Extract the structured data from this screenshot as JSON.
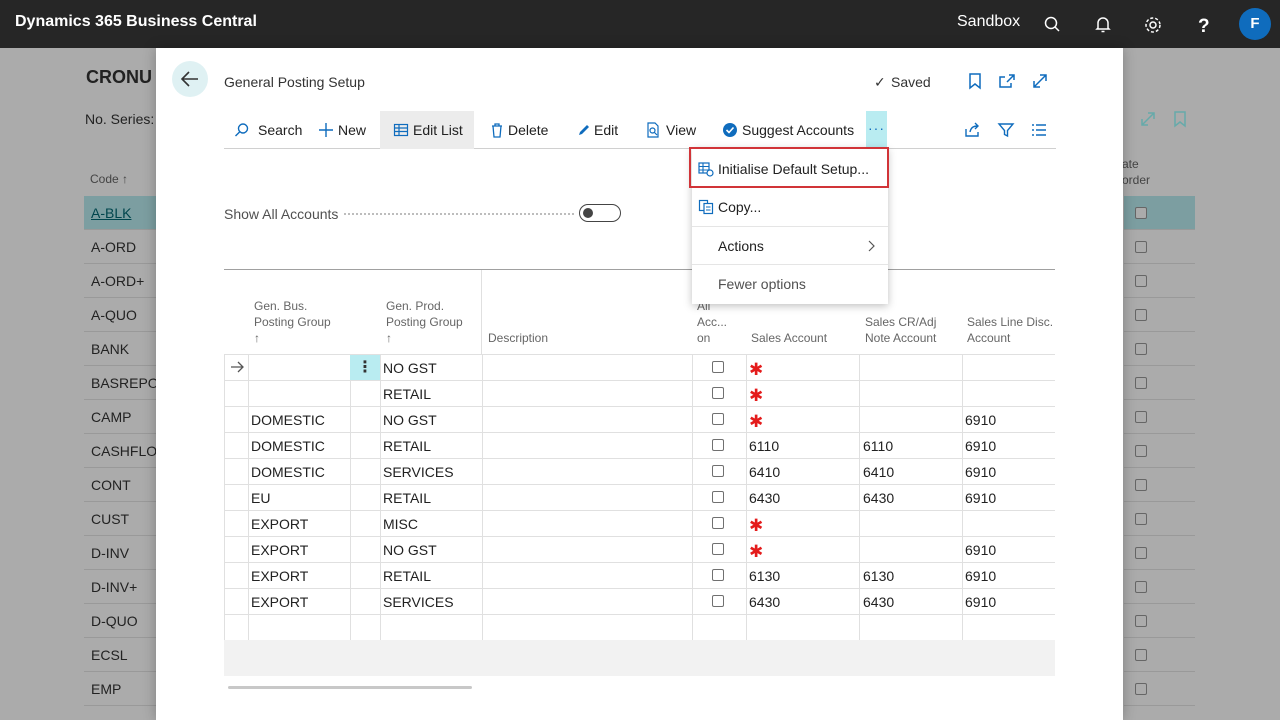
{
  "app": {
    "title": "Dynamics 365 Business Central",
    "environment": "Sandbox",
    "avatar_initial": "F"
  },
  "background_page": {
    "title": "CRONU",
    "series_label": "No. Series:",
    "code_header": "Code ↑",
    "right_header": "ate\norder",
    "codes": [
      "A-BLK",
      "A-ORD",
      "A-ORD+",
      "A-QUO",
      "BANK",
      "BASREPOR",
      "CAMP",
      "CASHFLOW",
      "CONT",
      "CUST",
      "D-INV",
      "D-INV+",
      "D-QUO",
      "ECSL",
      "EMP"
    ]
  },
  "dialog": {
    "title": "General Posting Setup",
    "saved_label": "Saved",
    "toggle_label": "Show All Accounts",
    "actions": {
      "search": "Search",
      "new": "New",
      "edit_list": "Edit List",
      "delete": "Delete",
      "edit": "Edit",
      "view": "View",
      "suggest": "Suggest Accounts",
      "more": "···"
    },
    "columns": {
      "gen_bus": "Gen. Bus.\nPosting Group\n↑",
      "gen_prod": "Gen. Prod.\nPosting Group\n↑",
      "description": "Description",
      "all_acc": "All\nAcc...\non",
      "sales_account": "Sales Account",
      "sales_cr": "Sales CR/Adj\nNote Account",
      "sales_line": "Sales Line Disc.\nAccount"
    },
    "rows": [
      {
        "bus": "",
        "prod": "NO GST",
        "sales": "",
        "sales_req": true,
        "cr": "",
        "line": ""
      },
      {
        "bus": "",
        "prod": "RETAIL",
        "sales": "",
        "sales_req": true,
        "cr": "",
        "line": ""
      },
      {
        "bus": "DOMESTIC",
        "prod": "NO GST",
        "sales": "",
        "sales_req": true,
        "cr": "",
        "line": "6910"
      },
      {
        "bus": "DOMESTIC",
        "prod": "RETAIL",
        "sales": "6110",
        "sales_req": false,
        "cr": "6110",
        "line": "6910"
      },
      {
        "bus": "DOMESTIC",
        "prod": "SERVICES",
        "sales": "6410",
        "sales_req": false,
        "cr": "6410",
        "line": "6910"
      },
      {
        "bus": "EU",
        "prod": "RETAIL",
        "sales": "6430",
        "sales_req": false,
        "cr": "6430",
        "line": "6910"
      },
      {
        "bus": "EXPORT",
        "prod": "MISC",
        "sales": "",
        "sales_req": true,
        "cr": "",
        "line": ""
      },
      {
        "bus": "EXPORT",
        "prod": "NO GST",
        "sales": "",
        "sales_req": true,
        "cr": "",
        "line": "6910"
      },
      {
        "bus": "EXPORT",
        "prod": "RETAIL",
        "sales": "6130",
        "sales_req": false,
        "cr": "6130",
        "line": "6910"
      },
      {
        "bus": "EXPORT",
        "prod": "SERVICES",
        "sales": "6430",
        "sales_req": false,
        "cr": "6430",
        "line": "6910"
      }
    ],
    "menu": {
      "initialise": "Initialise Default Setup...",
      "copy": "Copy...",
      "actions": "Actions",
      "fewer": "Fewer options"
    }
  },
  "colors": {
    "accent": "#0f6cbd",
    "selection": "#b9ecf1",
    "required": "#e41b1b",
    "highlight_border": "#d13438"
  }
}
